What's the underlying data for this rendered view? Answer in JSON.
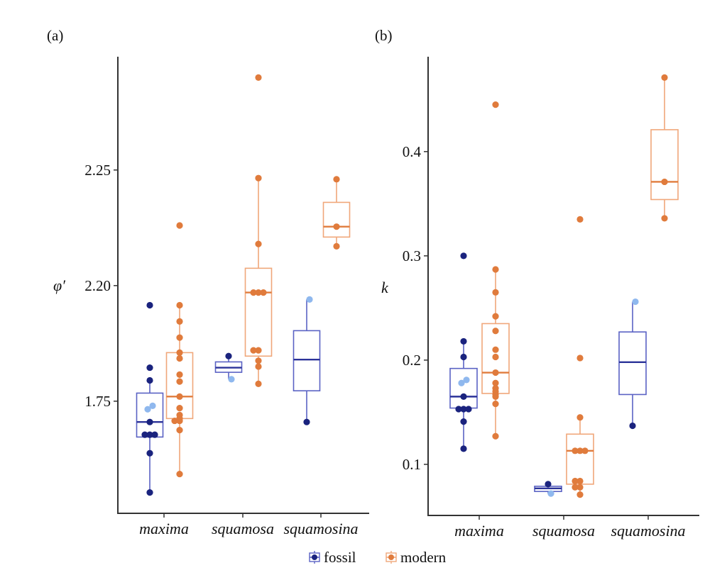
{
  "legend": {
    "position": "bottom-center",
    "items": [
      {
        "name": "fossil",
        "box_color": "#5a62c4",
        "point_color": "#1a237e",
        "light_point_color": "#8fb8ee"
      },
      {
        "name": "modern",
        "box_color": "#f0a77a",
        "point_color": "#e07b3c",
        "light_point_color": "#e07b3c"
      }
    ]
  },
  "chart_data": [
    {
      "type": "box",
      "panel_label": "(a)",
      "ylabel": "φ′",
      "xlabel": "",
      "categories": [
        "maxima",
        "squamosa",
        "squamosina"
      ],
      "y_scale_note": "values expressed in tick-index units; tick labels as printed",
      "yticks": [
        {
          "value": 0,
          "label": "1.75"
        },
        {
          "value": 1,
          "label": "2.20"
        },
        {
          "value": 2,
          "label": "2.25"
        }
      ],
      "ylim": [
        -0.97,
        2.98
      ],
      "grid": false,
      "series": [
        {
          "name": "fossil",
          "groups": [
            {
              "category": "maxima",
              "whisker_low": -0.79,
              "q1": -0.31,
              "median": -0.18,
              "q3": 0.07,
              "whisker_high": 0.18,
              "points": [
                0.83,
                0.29,
                0.18,
                -0.18,
                -0.29,
                -0.29,
                -0.29,
                -0.45,
                -0.79
              ],
              "light_points": [
                -0.04,
                -0.07
              ]
            },
            {
              "category": "squamosa",
              "whisker_low": 0.19,
              "q1": 0.25,
              "median": 0.29,
              "q3": 0.34,
              "whisker_high": 0.39,
              "points": [
                0.39
              ],
              "light_points": [
                0.19
              ]
            },
            {
              "category": "squamosina",
              "whisker_low": -0.18,
              "q1": 0.09,
              "median": 0.36,
              "q3": 0.61,
              "whisker_high": 0.88,
              "points": [
                -0.18
              ],
              "light_points": [
                0.88
              ]
            }
          ]
        },
        {
          "name": "modern",
          "groups": [
            {
              "category": "maxima",
              "whisker_low": -0.63,
              "q1": -0.15,
              "median": 0.04,
              "q3": 0.42,
              "whisker_high": 0.83,
              "points": [
                1.52,
                0.83,
                0.69,
                0.55,
                0.42,
                0.37,
                0.23,
                0.17,
                0.04,
                -0.06,
                -0.12,
                -0.15,
                -0.17,
                -0.17,
                -0.25,
                -0.63
              ],
              "light_points": []
            },
            {
              "category": "squamosa",
              "whisker_low": 0.15,
              "q1": 0.39,
              "median": 0.94,
              "q3": 1.15,
              "whisker_high": 1.93,
              "points": [
                2.8,
                1.93,
                1.36,
                0.94,
                0.94,
                0.94,
                0.44,
                0.44,
                0.35,
                0.3,
                0.15
              ],
              "light_points": []
            },
            {
              "category": "squamosina",
              "whisker_low": 1.34,
              "q1": 1.42,
              "median": 1.51,
              "q3": 1.72,
              "whisker_high": 1.92,
              "points": [
                1.92,
                1.51,
                1.34
              ],
              "light_points": []
            }
          ]
        }
      ]
    },
    {
      "type": "box",
      "panel_label": "(b)",
      "ylabel": "k",
      "xlabel": "",
      "categories": [
        "maxima",
        "squamosa",
        "squamosina"
      ],
      "yticks": [
        {
          "value": 0.1,
          "label": "0.1"
        },
        {
          "value": 0.2,
          "label": "0.2"
        },
        {
          "value": 0.3,
          "label": "0.3"
        },
        {
          "value": 0.4,
          "label": "0.4"
        }
      ],
      "ylim": [
        0.051,
        0.491
      ],
      "grid": false,
      "series": [
        {
          "name": "fossil",
          "groups": [
            {
              "category": "maxima",
              "whisker_low": 0.115,
              "q1": 0.154,
              "median": 0.165,
              "q3": 0.192,
              "whisker_high": 0.218,
              "points": [
                0.3,
                0.218,
                0.203,
                0.165,
                0.153,
                0.153,
                0.153,
                0.141,
                0.115
              ],
              "light_points": [
                0.181,
                0.178
              ]
            },
            {
              "category": "squamosa",
              "whisker_low": 0.072,
              "q1": 0.074,
              "median": 0.077,
              "q3": 0.079,
              "whisker_high": 0.081,
              "points": [
                0.081
              ],
              "light_points": [
                0.072
              ]
            },
            {
              "category": "squamosina",
              "whisker_low": 0.137,
              "q1": 0.167,
              "median": 0.198,
              "q3": 0.227,
              "whisker_high": 0.256,
              "points": [
                0.137
              ],
              "light_points": [
                0.256
              ]
            }
          ]
        },
        {
          "name": "modern",
          "groups": [
            {
              "category": "maxima",
              "whisker_low": 0.127,
              "q1": 0.168,
              "median": 0.188,
              "q3": 0.235,
              "whisker_high": 0.287,
              "points": [
                0.445,
                0.287,
                0.265,
                0.242,
                0.228,
                0.21,
                0.203,
                0.188,
                0.178,
                0.173,
                0.17,
                0.167,
                0.165,
                0.158,
                0.127
              ],
              "light_points": []
            },
            {
              "category": "squamosa",
              "whisker_low": 0.071,
              "q1": 0.081,
              "median": 0.113,
              "q3": 0.129,
              "whisker_high": 0.145,
              "points": [
                0.335,
                0.202,
                0.145,
                0.113,
                0.113,
                0.113,
                0.084,
                0.084,
                0.078,
                0.078,
                0.071
              ],
              "light_points": []
            },
            {
              "category": "squamosina",
              "whisker_low": 0.336,
              "q1": 0.354,
              "median": 0.371,
              "q3": 0.421,
              "whisker_high": 0.471,
              "points": [
                0.471,
                0.371,
                0.336
              ],
              "light_points": []
            }
          ]
        }
      ]
    }
  ]
}
